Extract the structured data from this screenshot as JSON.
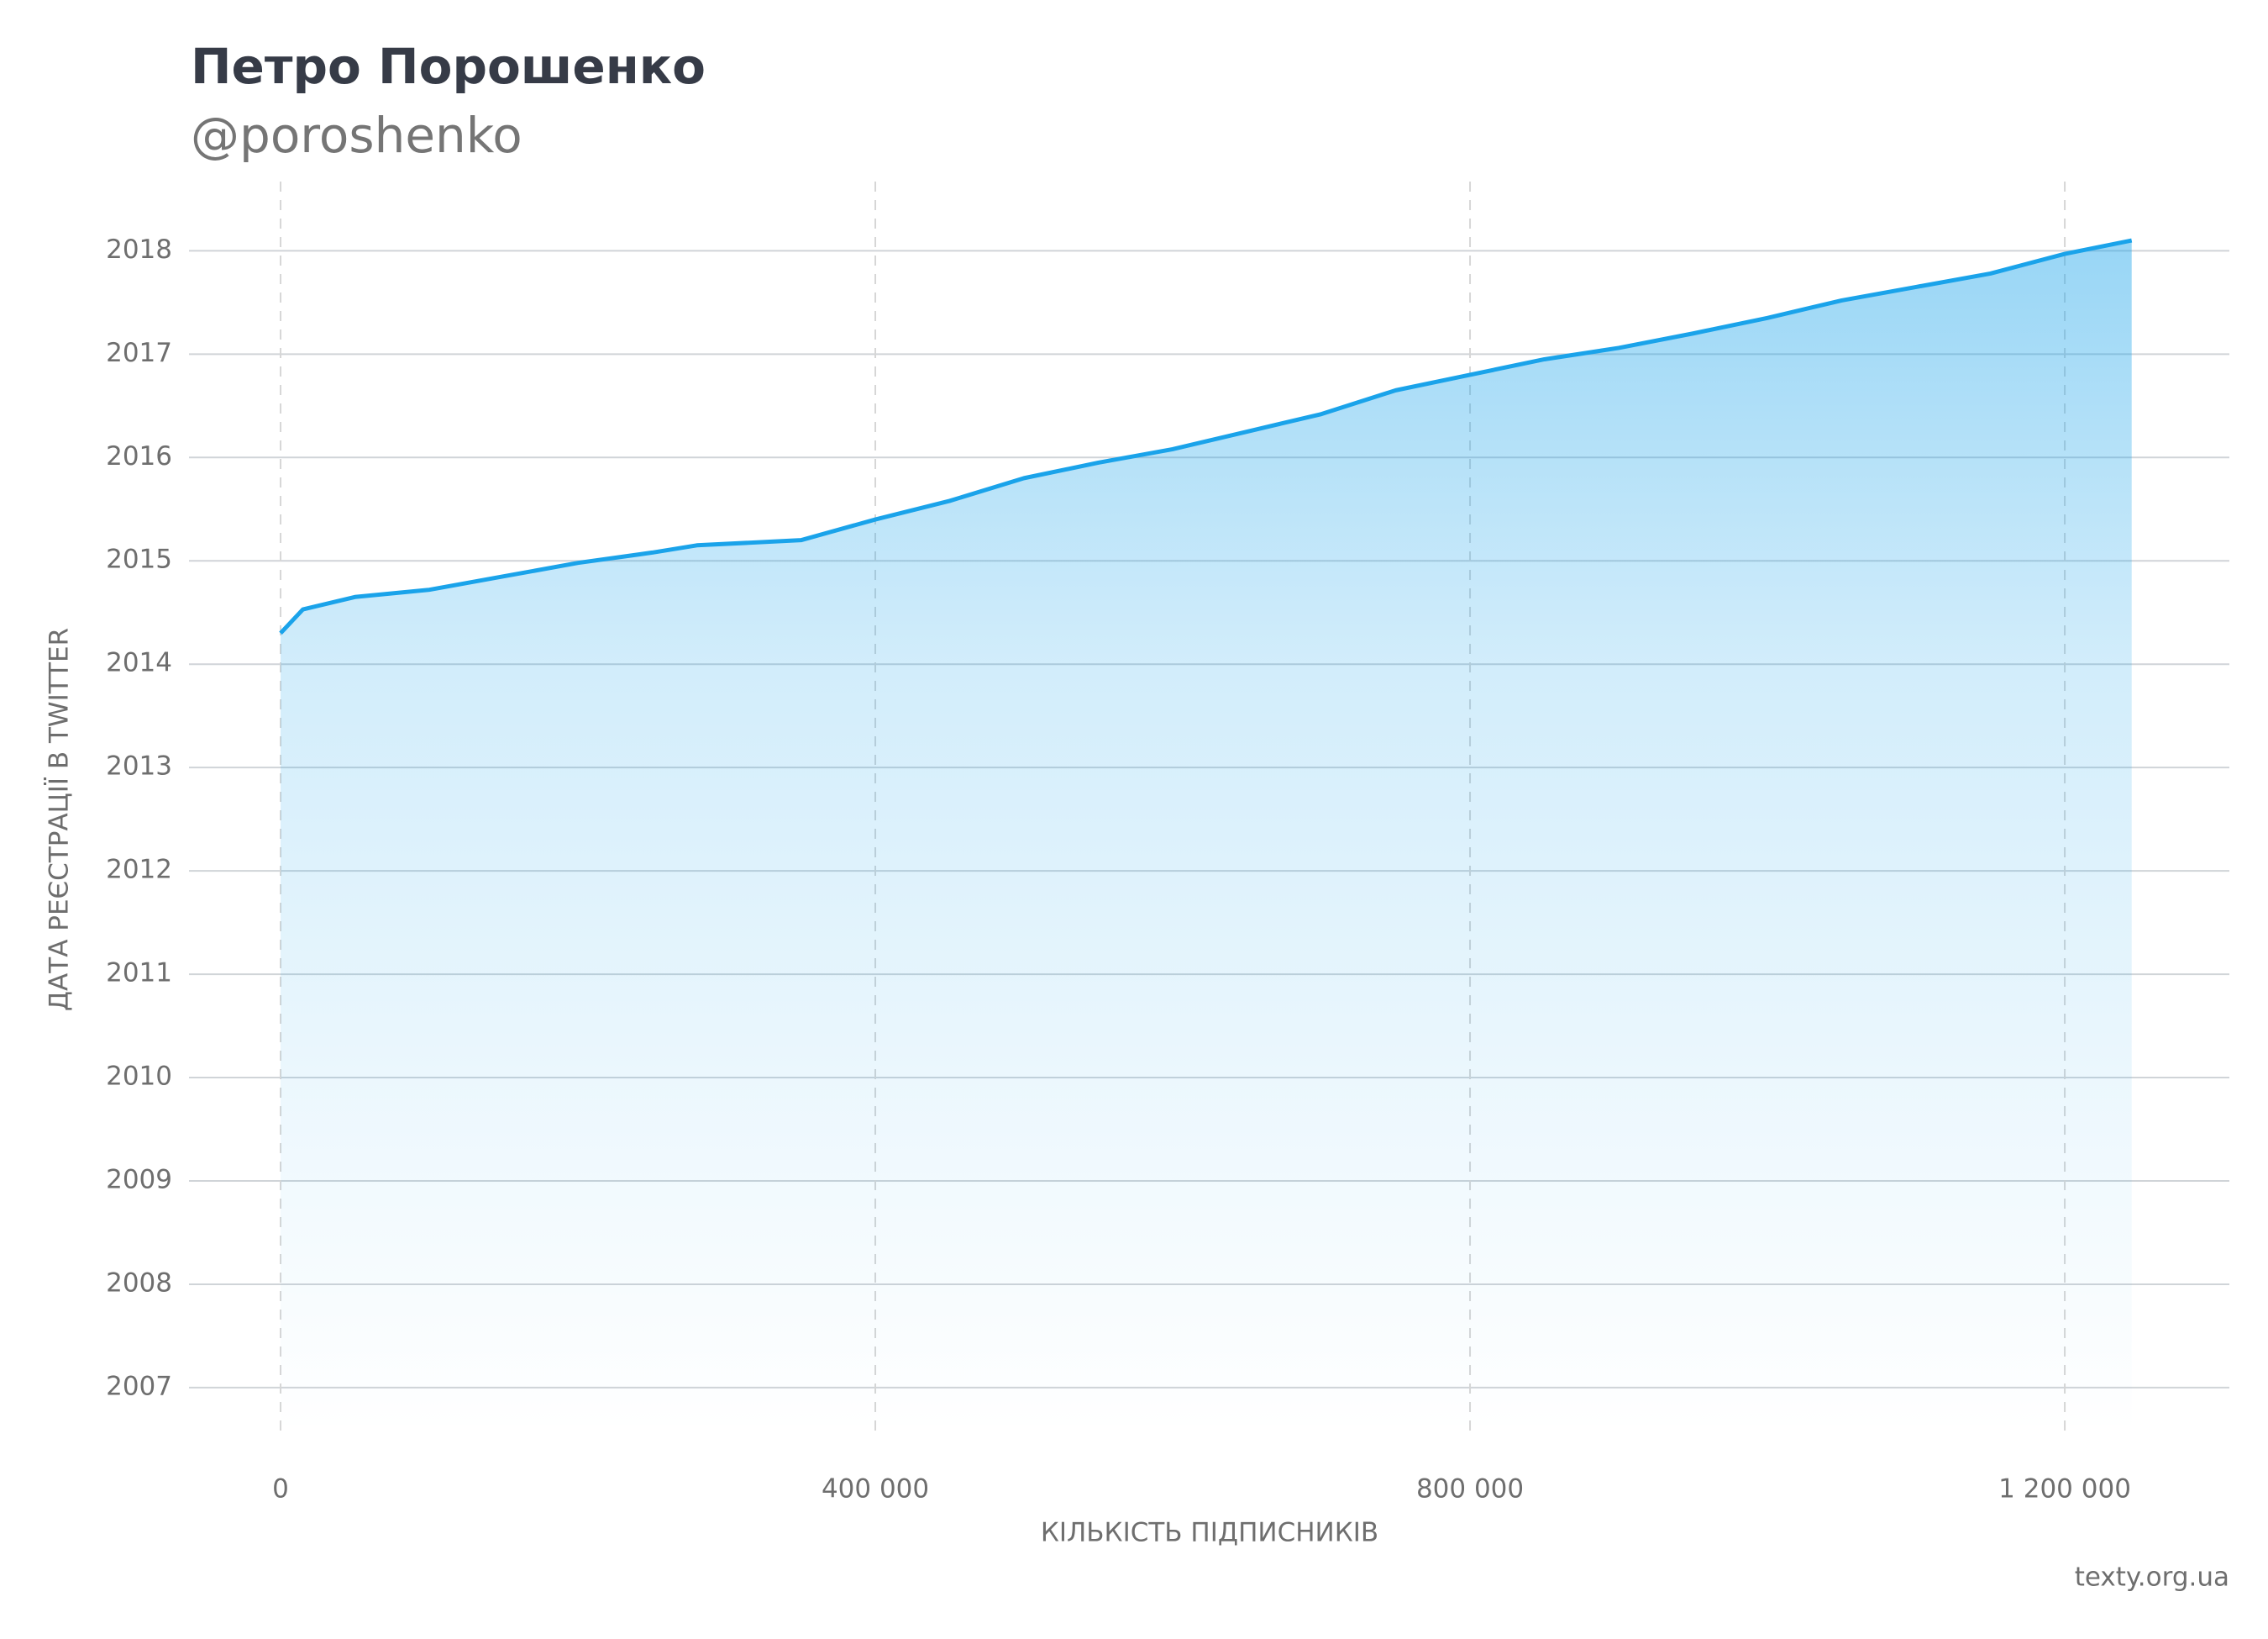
{
  "chart_data": {
    "type": "area",
    "title": "Петро Порошенко",
    "subtitle": "@poroshenko",
    "x_label": "КІЛЬКІСТЬ ПІДПИСНИКІВ",
    "y_label": "ДАТА РЕЄСТРАЦІЇ В TWITTER",
    "source": "texty.org.ua",
    "color": "#1aa3ea",
    "x": [
      0,
      15000,
      50000,
      100000,
      150000,
      200000,
      250000,
      280000,
      350000,
      400000,
      450000,
      500000,
      550000,
      600000,
      650000,
      700000,
      750000,
      800000,
      850000,
      900000,
      950000,
      1000000,
      1050000,
      1100000,
      1150000,
      1200000,
      1245000
    ],
    "values": [
      2014.3,
      2014.53,
      2014.65,
      2014.72,
      2014.85,
      2014.98,
      2015.08,
      2015.15,
      2015.2,
      2015.4,
      2015.58,
      2015.8,
      2015.95,
      2016.08,
      2016.25,
      2016.42,
      2016.65,
      2016.8,
      2016.95,
      2017.06,
      2017.2,
      2017.35,
      2017.52,
      2017.65,
      2017.78,
      2017.97,
      2018.1
    ],
    "xlim": [
      -61600,
      1310700
    ],
    "ylim": [
      2006.56,
      2018.67
    ],
    "xticks": [
      0,
      {
        "value": 400000,
        "label": "400 000"
      },
      {
        "value": 800000,
        "label": "800 000"
      },
      {
        "value": 1200000,
        "label": "1 200 000"
      }
    ],
    "yticks": [
      2007,
      2008,
      2009,
      2010,
      2011,
      2012,
      2013,
      2014,
      2015,
      2016,
      2017,
      2018
    ],
    "grid": true
  }
}
